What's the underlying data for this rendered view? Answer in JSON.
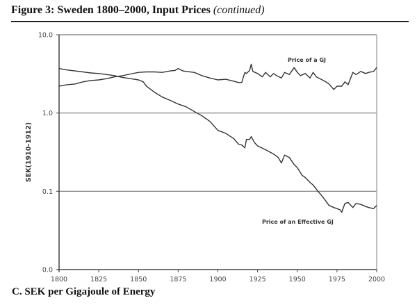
{
  "figure": {
    "title_main": "Figure 3:  Sweden 1800–2000, Input Prices ",
    "title_suffix": "(continued)",
    "panel_label": "C. SEK per Gigajoule of Energy"
  },
  "chart_data": {
    "type": "line",
    "title": "SEK per Gigajoule of Energy",
    "xlabel": "",
    "ylabel": "SEK(1910-1912)",
    "y_scale": "log",
    "xlim": [
      1800,
      2000
    ],
    "ylim": [
      0.01,
      10.0
    ],
    "x_ticks": [
      1800,
      1825,
      1850,
      1875,
      1900,
      1925,
      1950,
      1975,
      2000
    ],
    "x_tick_labels": [
      "1800",
      "1825",
      "1850",
      "1875",
      "1900",
      "1925",
      "1950",
      "1975",
      "2000"
    ],
    "y_ticks": [
      0.01,
      0.1,
      1.0,
      10.0
    ],
    "y_tick_labels": [
      "0.0",
      "0.1",
      "1.0",
      "10.0"
    ],
    "grid": "horizontal at 0.1, 1.0 and 10.0",
    "legend": "inline labels",
    "series": [
      {
        "name": "Price of a GJ",
        "color": "#333333",
        "label_position": "above line near 1960",
        "x": [
          1800,
          1805,
          1810,
          1815,
          1820,
          1825,
          1830,
          1835,
          1840,
          1845,
          1850,
          1855,
          1860,
          1865,
          1870,
          1873,
          1875,
          1878,
          1880,
          1885,
          1890,
          1895,
          1900,
          1905,
          1910,
          1913,
          1915,
          1917,
          1918,
          1920,
          1921,
          1922,
          1925,
          1928,
          1930,
          1933,
          1935,
          1937,
          1940,
          1942,
          1945,
          1948,
          1950,
          1952,
          1955,
          1958,
          1960,
          1962,
          1965,
          1968,
          1970,
          1973,
          1975,
          1978,
          1980,
          1982,
          1985,
          1987,
          1990,
          1993,
          1995,
          1998,
          2000
        ],
        "values": [
          2.2,
          2.3,
          2.35,
          2.5,
          2.6,
          2.65,
          2.75,
          2.9,
          3.0,
          3.15,
          3.3,
          3.35,
          3.35,
          3.3,
          3.45,
          3.5,
          3.7,
          3.45,
          3.4,
          3.3,
          3.0,
          2.8,
          2.65,
          2.7,
          2.55,
          2.45,
          2.45,
          3.3,
          3.2,
          3.5,
          4.2,
          3.4,
          3.2,
          2.9,
          3.3,
          2.9,
          3.2,
          3.0,
          2.8,
          3.3,
          3.1,
          3.8,
          3.3,
          3.0,
          3.2,
          2.8,
          3.3,
          2.9,
          2.7,
          2.5,
          2.35,
          2.0,
          2.2,
          2.2,
          2.5,
          2.3,
          3.3,
          3.1,
          3.4,
          3.2,
          3.3,
          3.4,
          3.8
        ]
      },
      {
        "name": "Price of an Effective GJ",
        "color": "#333333",
        "label_position": "below line near 1960",
        "x": [
          1800,
          1805,
          1810,
          1815,
          1820,
          1825,
          1830,
          1835,
          1840,
          1845,
          1850,
          1853,
          1855,
          1860,
          1865,
          1870,
          1875,
          1880,
          1885,
          1890,
          1895,
          1900,
          1905,
          1910,
          1913,
          1915,
          1917,
          1918,
          1920,
          1921,
          1923,
          1925,
          1930,
          1935,
          1938,
          1940,
          1942,
          1945,
          1948,
          1950,
          1953,
          1955,
          1958,
          1960,
          1963,
          1965,
          1967,
          1970,
          1973,
          1975,
          1977,
          1978,
          1980,
          1982,
          1985,
          1987,
          1990,
          1993,
          1995,
          1998,
          2000
        ],
        "values": [
          3.7,
          3.55,
          3.45,
          3.35,
          3.25,
          3.2,
          3.1,
          3.0,
          2.85,
          2.75,
          2.65,
          2.5,
          2.2,
          1.85,
          1.6,
          1.45,
          1.3,
          1.2,
          1.05,
          0.92,
          0.78,
          0.6,
          0.55,
          0.47,
          0.4,
          0.39,
          0.36,
          0.46,
          0.46,
          0.5,
          0.42,
          0.38,
          0.34,
          0.3,
          0.27,
          0.23,
          0.29,
          0.27,
          0.22,
          0.2,
          0.16,
          0.15,
          0.13,
          0.12,
          0.1,
          0.09,
          0.08,
          0.066,
          0.062,
          0.06,
          0.058,
          0.054,
          0.07,
          0.072,
          0.062,
          0.07,
          0.068,
          0.064,
          0.062,
          0.06,
          0.066
        ]
      }
    ]
  }
}
